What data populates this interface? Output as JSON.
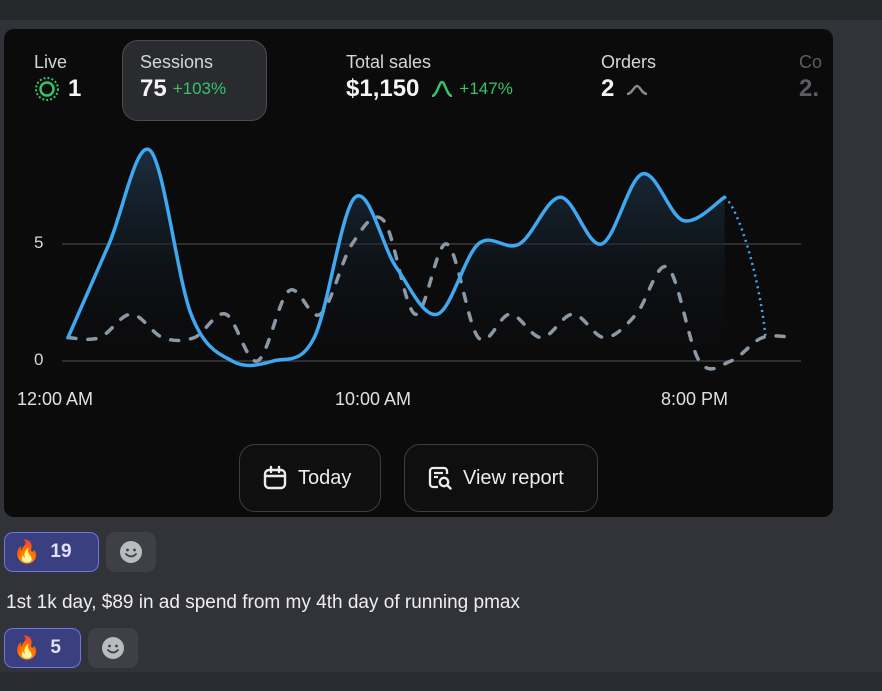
{
  "stats": {
    "live": {
      "label": "Live",
      "value": "1"
    },
    "sessions": {
      "label": "Sessions",
      "value": "75",
      "change": "+103%"
    },
    "total_sales": {
      "label": "Total sales",
      "value": "$1,150",
      "change": "+147%"
    },
    "orders": {
      "label": "Orders",
      "value": "2"
    },
    "conversion": {
      "label": "Co",
      "value": "2."
    }
  },
  "chart_data": {
    "type": "line",
    "x_tick_labels": [
      "12:00 AM",
      "10:00 AM",
      "8:00 PM"
    ],
    "y_tick_labels": [
      "0",
      "5"
    ],
    "ylim": [
      0,
      9
    ],
    "grid": "horizontal",
    "series": [
      {
        "style": "solid",
        "color": "#3ea8f0",
        "values": [
          1,
          5,
          9,
          2,
          0,
          0,
          1,
          7,
          4,
          2,
          5,
          5,
          7,
          5,
          8,
          6,
          7,
          1
        ]
      },
      {
        "style": "dashed",
        "color": "#8b99a6",
        "values": [
          1,
          1,
          2,
          1,
          1,
          2,
          0,
          3,
          2,
          5,
          6,
          2,
          5,
          1,
          2,
          1,
          2,
          1,
          2,
          4,
          0,
          0,
          1,
          1
        ]
      }
    ]
  },
  "buttons": {
    "today": "Today",
    "view_report": "View report"
  },
  "reactions_1": {
    "fire_emoji": "🔥",
    "fire_count": "19"
  },
  "message": {
    "text": "1st 1k day, $89 in ad spend from my 4th day of running pmax"
  },
  "reactions_2": {
    "fire_emoji": "🔥",
    "fire_count": "5"
  },
  "colors": {
    "accent_green": "#35c46a",
    "line_blue": "#3ea8f0",
    "reaction_bg": "#3a3f80"
  }
}
